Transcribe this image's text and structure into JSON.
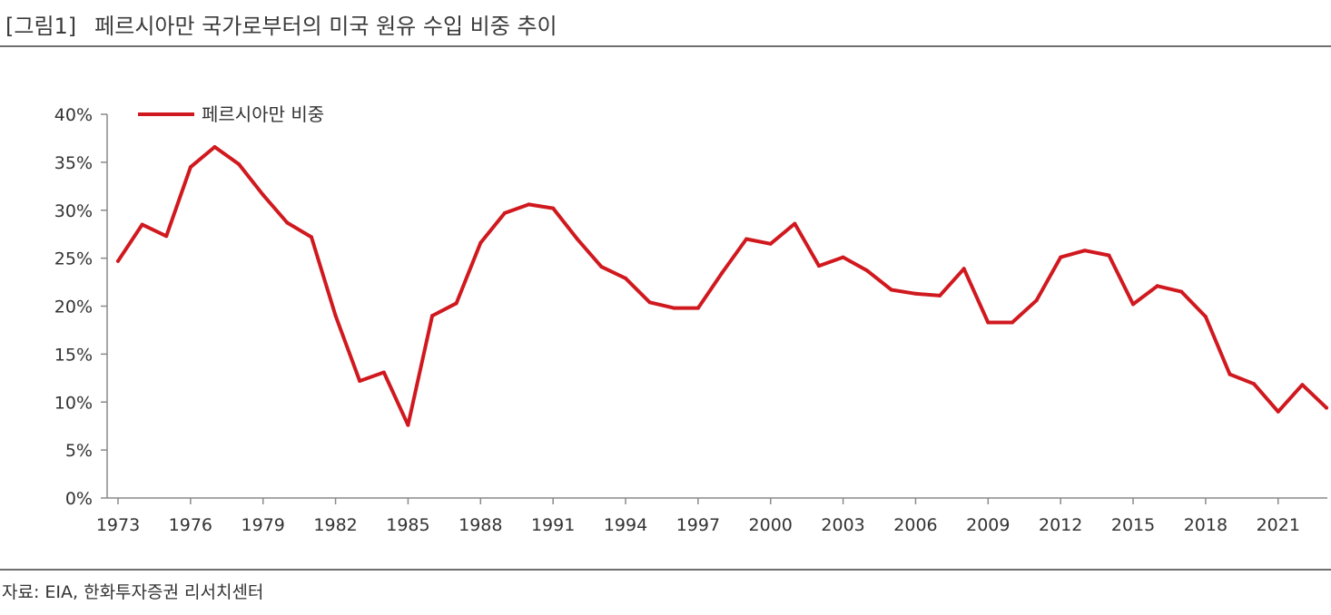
{
  "header": {
    "figure_label": "[그림1]",
    "title": "페르시아만 국가로부터의 미국 원유 수입 비중 추이"
  },
  "source": "자료: EIA, 한화투자증권 리서치센터",
  "colors": {
    "series": "#d0191f",
    "axis": "#8a8a8a",
    "rule": "#6f6f6f"
  },
  "chart_data": {
    "type": "line",
    "title": "페르시아만 국가로부터의 미국 원유 수입 비중 추이",
    "xlabel": "",
    "ylabel": "",
    "x": [
      1973,
      1974,
      1975,
      1976,
      1977,
      1978,
      1979,
      1980,
      1981,
      1982,
      1983,
      1984,
      1985,
      1986,
      1987,
      1988,
      1989,
      1990,
      1991,
      1992,
      1993,
      1994,
      1995,
      1996,
      1997,
      1998,
      1999,
      2000,
      2001,
      2002,
      2003,
      2004,
      2005,
      2006,
      2007,
      2008,
      2009,
      2010,
      2011,
      2012,
      2013,
      2014,
      2015,
      2016,
      2017,
      2018,
      2019,
      2020,
      2021,
      2022,
      2023
    ],
    "series": [
      {
        "name": "페르시아만 비중",
        "values": [
          24.7,
          28.5,
          27.3,
          34.5,
          36.6,
          34.8,
          31.6,
          28.7,
          27.2,
          19.0,
          12.2,
          13.1,
          7.6,
          19.0,
          20.3,
          26.6,
          29.7,
          30.6,
          30.2,
          27.0,
          24.1,
          22.9,
          20.4,
          19.8,
          19.8,
          23.5,
          27.0,
          26.5,
          28.6,
          24.2,
          25.1,
          23.7,
          21.7,
          21.3,
          21.1,
          23.9,
          18.3,
          18.3,
          20.6,
          25.1,
          25.8,
          25.3,
          20.2,
          22.1,
          21.5,
          18.9,
          12.9,
          11.9,
          9.0,
          11.8,
          9.4
        ]
      }
    ],
    "xticks": [
      "1973",
      "1976",
      "1979",
      "1982",
      "1985",
      "1988",
      "1991",
      "1994",
      "1997",
      "2000",
      "2003",
      "2006",
      "2009",
      "2012",
      "2015",
      "2018",
      "2021"
    ],
    "yticks": [
      "0%",
      "5%",
      "10%",
      "15%",
      "20%",
      "25%",
      "30%",
      "35%",
      "40%"
    ],
    "ylim": [
      0,
      40
    ],
    "legend": "top-left",
    "grid": false
  }
}
